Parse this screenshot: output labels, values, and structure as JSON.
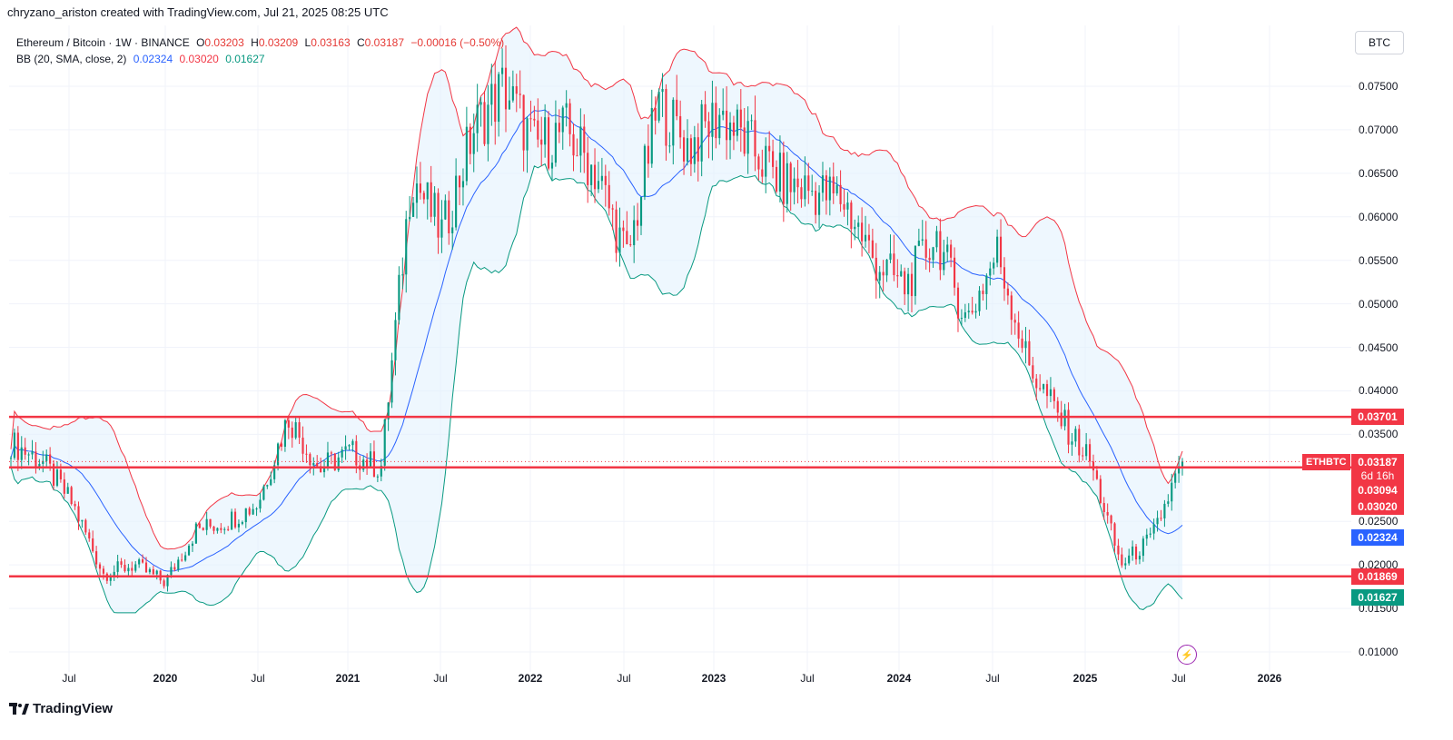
{
  "header": "chryzano_ariston created with TradingView.com, Jul 21, 2025 08:25 UTC",
  "legend": {
    "symbol": "Ethereum / Bitcoin · 1W · BINANCE",
    "o_label": "O",
    "o_value": "0.03203",
    "h_label": "H",
    "h_value": "0.03209",
    "l_label": "L",
    "l_value": "0.03163",
    "c_label": "C",
    "c_value": "0.03187",
    "change": "−0.00016 (−0.50%)",
    "bb_label": "BB (20, SMA, close, 2)",
    "bb_basis": "0.02324",
    "bb_upper": "0.03020",
    "bb_lower": "0.01627"
  },
  "currency": "BTC",
  "colors": {
    "up": "#089981",
    "down": "#f23645",
    "basis": "#2962ff",
    "upper": "#f23645",
    "lower": "#089981",
    "band_fill": "#e3f2fd",
    "hline": "#f23645"
  },
  "price_labels": {
    "symbol_tag": "ETHBTC",
    "last": "0.03187",
    "countdown": "6d 16h",
    "p1": "0.03094",
    "upper": "0.03020",
    "basis": "0.02324",
    "lower": "0.01627",
    "hline_top": "0.03701",
    "hline_bottom": "0.01869"
  },
  "footer": {
    "brand": "TradingView"
  },
  "icons": {
    "bolt": "lightning-bolt-icon"
  },
  "chart_data": {
    "type": "candlestick",
    "title": "Ethereum / Bitcoin · 1W · BINANCE",
    "ylim": [
      0.0075,
      0.081
    ],
    "y_ticks": [
      "0.07500",
      "0.07000",
      "0.06500",
      "0.06000",
      "0.05500",
      "0.05000",
      "0.04500",
      "0.04000",
      "0.03500",
      "0.02500",
      "0.02000",
      "0.01500",
      "0.01000"
    ],
    "x_ticks": [
      "Jul",
      "2020",
      "Jul",
      "2021",
      "Jul",
      "2022",
      "Jul",
      "2023",
      "Jul",
      "2024",
      "Jul",
      "2025",
      "Jul",
      "2026"
    ],
    "horizontal_lines": [
      0.03701,
      0.0312,
      0.01869
    ],
    "series": [
      {
        "name": "close",
        "dates": [
          "2019-03",
          "2019-05",
          "2019-07",
          "2019-09",
          "2019-11",
          "2020-01",
          "2020-03",
          "2020-05",
          "2020-07",
          "2020-09",
          "2020-11",
          "2021-01",
          "2021-03",
          "2021-05",
          "2021-07",
          "2021-09",
          "2021-11",
          "2022-01",
          "2022-03",
          "2022-05",
          "2022-07",
          "2022-09",
          "2022-11",
          "2023-01",
          "2023-03",
          "2023-05",
          "2023-07",
          "2023-09",
          "2023-11",
          "2024-01",
          "2024-03",
          "2024-05",
          "2024-07",
          "2024-09",
          "2024-11",
          "2025-01",
          "2025-03",
          "2025-05",
          "2025-07"
        ],
        "values": [
          0.034,
          0.032,
          0.027,
          0.019,
          0.02,
          0.018,
          0.024,
          0.025,
          0.027,
          0.037,
          0.031,
          0.033,
          0.031,
          0.065,
          0.058,
          0.07,
          0.075,
          0.068,
          0.07,
          0.065,
          0.055,
          0.073,
          0.068,
          0.072,
          0.068,
          0.064,
          0.063,
          0.062,
          0.055,
          0.052,
          0.058,
          0.048,
          0.056,
          0.043,
          0.037,
          0.032,
          0.02,
          0.023,
          0.0319
        ]
      }
    ]
  }
}
